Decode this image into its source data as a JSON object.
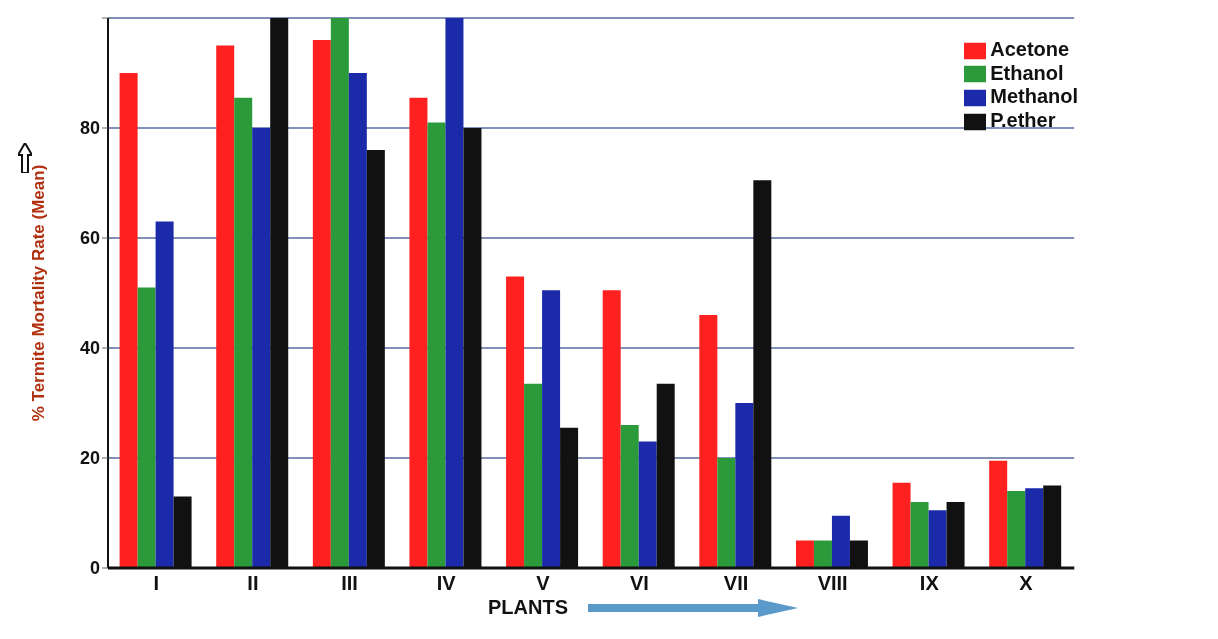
{
  "chart_data": {
    "type": "bar",
    "xlabel": "PLANTS",
    "ylabel": "% Termite Mortality Rate (Mean)",
    "categories": [
      "I",
      "II",
      "III",
      "IV",
      "V",
      "VI",
      "VII",
      "VIII",
      "IX",
      "X"
    ],
    "series": [
      {
        "name": "Acetone",
        "color": "#ff2020",
        "values": [
          90,
          95,
          96,
          85.5,
          53,
          50.5,
          46,
          5,
          15.5,
          19.5
        ]
      },
      {
        "name": "Ethanol",
        "color": "#2a9a3a",
        "values": [
          51,
          85.5,
          100,
          81,
          33.5,
          26,
          20,
          5,
          12,
          14
        ]
      },
      {
        "name": "Methanol",
        "color": "#1a2aa8",
        "values": [
          63,
          80,
          90,
          100,
          50.5,
          23,
          30,
          9.5,
          10.5,
          14.5
        ]
      },
      {
        "name": "P.ether",
        "color": "#111111",
        "values": [
          13,
          100,
          76,
          80,
          25.5,
          33.5,
          70.5,
          5,
          12,
          15
        ]
      }
    ],
    "ylim": [
      0,
      100
    ],
    "yticks": [
      0,
      20,
      40,
      60,
      80,
      {
        "value": 100,
        "label": null
      }
    ],
    "grid": "y",
    "legend": "top right"
  }
}
